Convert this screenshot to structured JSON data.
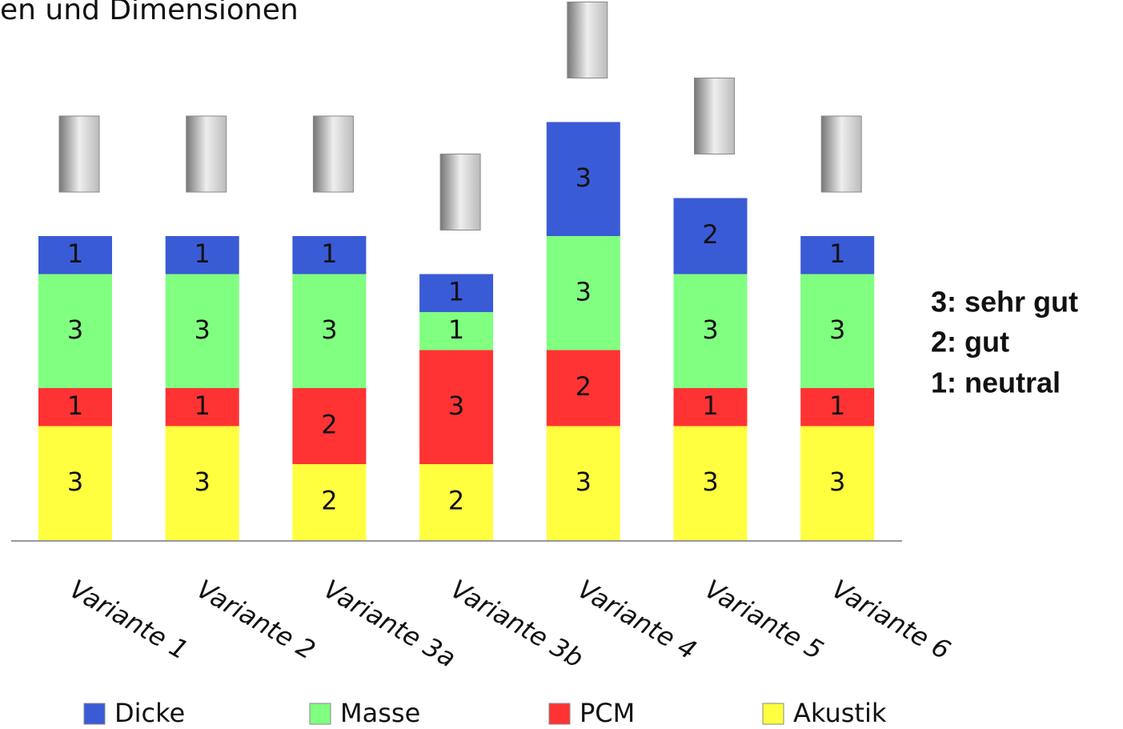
{
  "chart_data": {
    "type": "stacked-bar",
    "title": "en und Dimensionen",
    "categories": [
      "Variante 1",
      "Variante 2",
      "Variante 3a",
      "Variante 3b",
      "Variante 4",
      "Variante 5",
      "Variante 6"
    ],
    "series": [
      {
        "name": "Dicke",
        "color": "#3a5bd6",
        "values": [
          1,
          1,
          1,
          1,
          3,
          2,
          1
        ]
      },
      {
        "name": "Masse",
        "color": "#80ff80",
        "values": [
          3,
          3,
          3,
          1,
          3,
          3,
          3
        ]
      },
      {
        "name": "PCM",
        "color": "#ff3333",
        "values": [
          1,
          1,
          2,
          3,
          2,
          1,
          1
        ]
      },
      {
        "name": "Akustik",
        "color": "#ffff40",
        "values": [
          3,
          3,
          2,
          2,
          3,
          3,
          3
        ]
      }
    ],
    "annotations": [
      "3:  sehr gut",
      "2:  gut",
      "1:  neutral"
    ]
  }
}
